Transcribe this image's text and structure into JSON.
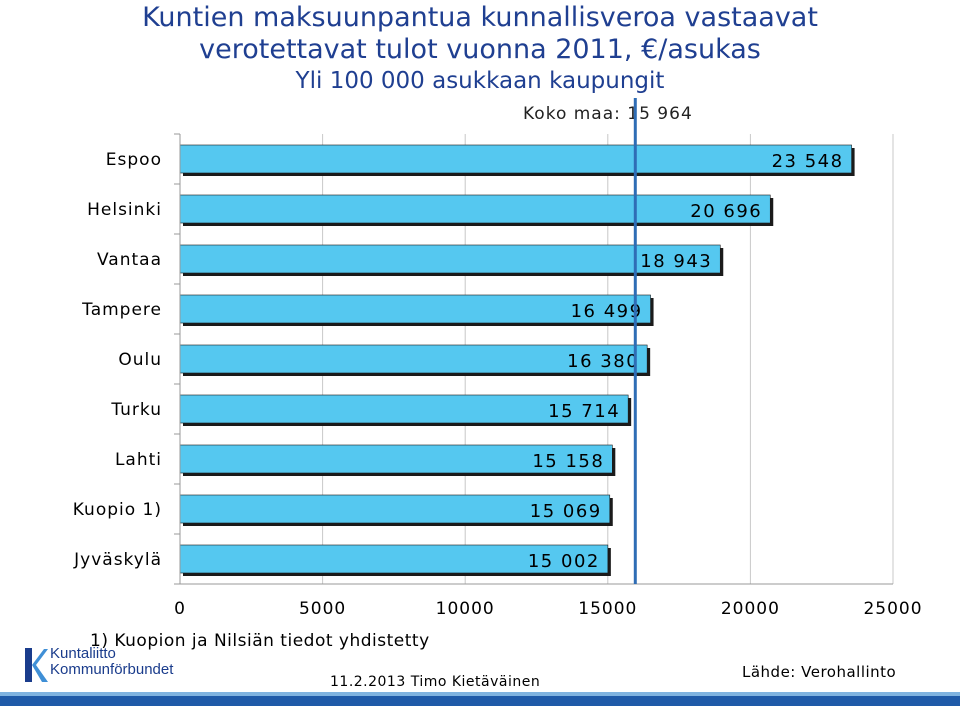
{
  "title_line1": "Kuntien maksuunpantua kunnallisveroa vastaavat",
  "title_line2": "verotettavat tulot vuonna 2011, €/asukas",
  "title_line3": "Yli 100 000 asukkaan kaupungit",
  "reference_label": "Koko maa:  15 964",
  "footnote": "1) Kuopion ja Nilsiän tiedot yhdistetty",
  "date_author": "11.2.2013 Timo Kietäväinen",
  "source": "Lähde: Verohallinto",
  "logo": {
    "line1": "Kuntaliitto",
    "line2": "Kommunförbundet"
  },
  "colors": {
    "title": "#1f3f91",
    "bar": "#55c8f0",
    "reference_line": "#2f6db5",
    "footer": "#1f5aa8"
  },
  "chart_data": {
    "type": "bar",
    "orientation": "horizontal",
    "categories": [
      "Espoo",
      "Helsinki",
      "Vantaa",
      "Tampere",
      "Oulu",
      "Turku",
      "Lahti",
      "Kuopio 1)",
      "Jyväskylä"
    ],
    "values": [
      23548,
      20696,
      18943,
      16499,
      16380,
      15714,
      15158,
      15069,
      15002
    ],
    "value_labels": [
      "23 548",
      "20 696",
      "18 943",
      "16 499",
      "16 380",
      "15 714",
      "15 158",
      "15 069",
      "15 002"
    ],
    "xlim": [
      0,
      25000
    ],
    "xticks": [
      0,
      5000,
      10000,
      15000,
      20000,
      25000
    ],
    "xtick_labels": [
      "0",
      "5000",
      "10000",
      "15000",
      "20000",
      "25000"
    ],
    "reference_value": 15964,
    "grid": true
  }
}
